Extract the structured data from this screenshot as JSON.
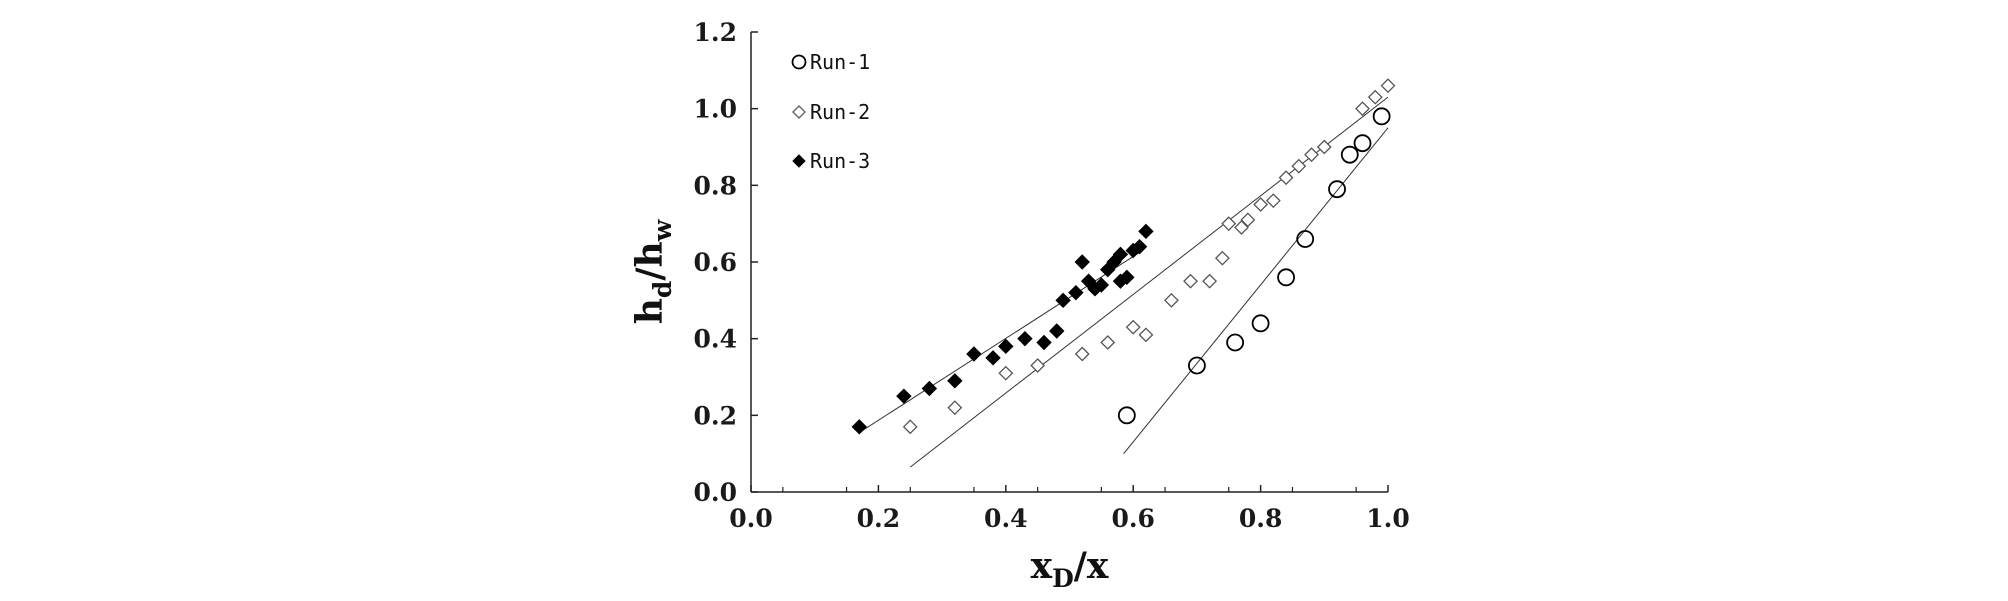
{
  "chart_data": {
    "type": "scatter",
    "title": "",
    "xlabel": {
      "main": "x",
      "sub": "D",
      "tail": "/x"
    },
    "ylabel": {
      "main": "h",
      "sub": "d",
      "mid": "/h",
      "sub2": "w"
    },
    "xlim": [
      0.0,
      1.0
    ],
    "ylim": [
      0.0,
      1.2
    ],
    "xticks": [
      "0.0",
      "0.2",
      "0.4",
      "0.6",
      "0.8",
      "1.0"
    ],
    "yticks": [
      "0.0",
      "0.2",
      "0.4",
      "0.6",
      "0.8",
      "1.0",
      "1.2"
    ],
    "grid": false,
    "legend_position": "top-left",
    "series": [
      {
        "name": "Run-1",
        "marker": "open-circle",
        "color": "#000000",
        "x": [
          0.59,
          0.7,
          0.76,
          0.8,
          0.84,
          0.87,
          0.92,
          0.94,
          0.96,
          0.99
        ],
        "y": [
          0.2,
          0.33,
          0.39,
          0.44,
          0.56,
          0.66,
          0.79,
          0.88,
          0.91,
          0.98
        ],
        "trend": {
          "x": [
            0.585,
            1.0
          ],
          "y": [
            0.1,
            0.95
          ]
        }
      },
      {
        "name": "Run-2",
        "marker": "open-diamond",
        "color": "#555555",
        "x": [
          0.25,
          0.32,
          0.4,
          0.45,
          0.52,
          0.56,
          0.6,
          0.62,
          0.66,
          0.69,
          0.72,
          0.74,
          0.75,
          0.77,
          0.78,
          0.8,
          0.82,
          0.84,
          0.86,
          0.88,
          0.9,
          0.96,
          0.98,
          1.0
        ],
        "y": [
          0.17,
          0.22,
          0.31,
          0.33,
          0.36,
          0.39,
          0.43,
          0.41,
          0.5,
          0.55,
          0.55,
          0.61,
          0.7,
          0.69,
          0.71,
          0.75,
          0.76,
          0.82,
          0.85,
          0.88,
          0.9,
          1.0,
          1.03,
          1.06
        ],
        "trend": {
          "x": [
            0.25,
            1.0
          ],
          "y": [
            0.065,
            1.03
          ]
        }
      },
      {
        "name": "Run-3",
        "marker": "filled-diamond",
        "color": "#000000",
        "x": [
          0.17,
          0.24,
          0.28,
          0.32,
          0.35,
          0.38,
          0.4,
          0.43,
          0.46,
          0.48,
          0.49,
          0.51,
          0.52,
          0.53,
          0.54,
          0.55,
          0.56,
          0.57,
          0.58,
          0.58,
          0.59,
          0.6,
          0.61,
          0.62
        ],
        "y": [
          0.17,
          0.25,
          0.27,
          0.29,
          0.36,
          0.35,
          0.38,
          0.4,
          0.39,
          0.42,
          0.5,
          0.52,
          0.6,
          0.55,
          0.53,
          0.54,
          0.58,
          0.6,
          0.55,
          0.62,
          0.56,
          0.63,
          0.64,
          0.68
        ],
        "trend": {
          "x": [
            0.17,
            0.61
          ],
          "y": [
            0.155,
            0.625
          ]
        }
      }
    ]
  }
}
